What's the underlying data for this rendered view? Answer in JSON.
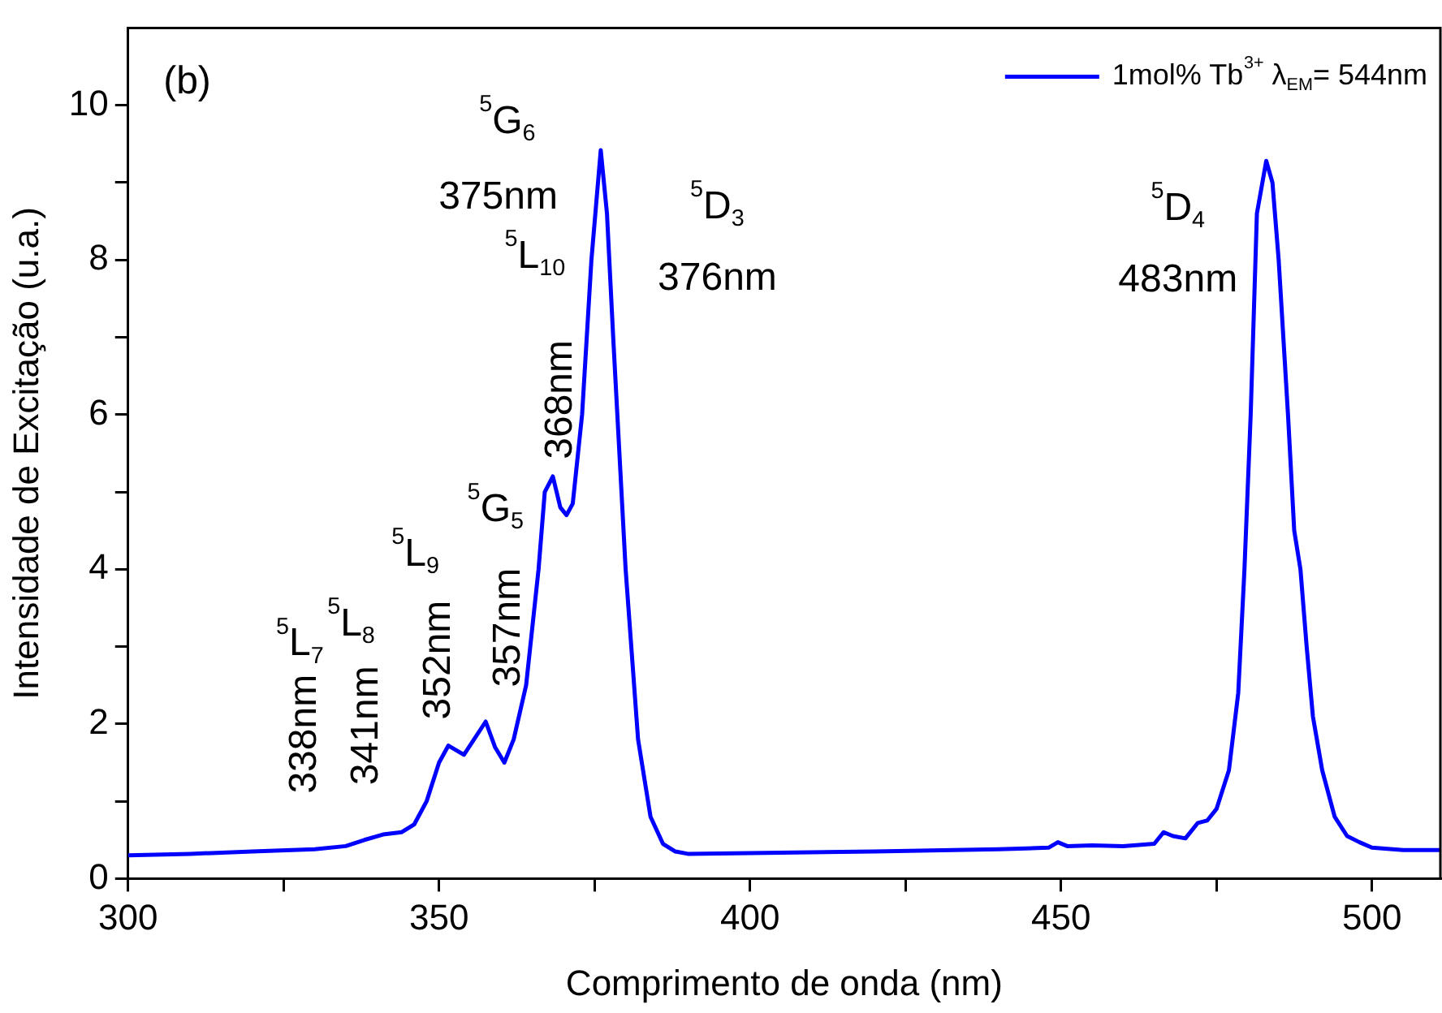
{
  "chart_data": {
    "type": "line",
    "xlabel": "Comprimento de onda (nm)",
    "ylabel": "Intensidade de Excitação (u.a.)",
    "xlim": [
      300,
      511
    ],
    "xticks": [
      300,
      {
        "value": 325,
        "label": null
      },
      350,
      {
        "value": 375,
        "label": null
      },
      400,
      {
        "value": 425,
        "label": null
      },
      450,
      {
        "value": 475,
        "label": null
      },
      500
    ],
    "ylim": [
      0,
      11
    ],
    "yticks": [
      0,
      {
        "value": 1,
        "label": null
      },
      2,
      {
        "value": 3,
        "label": null
      },
      4,
      {
        "value": 5,
        "label": null
      },
      6,
      {
        "value": 7,
        "label": null
      },
      8,
      {
        "value": 9,
        "label": null
      },
      10
    ],
    "grid": false,
    "legend": "top right",
    "marker": "none",
    "line_style": "solid",
    "series": [
      {
        "name": "1mol% Tb$^{3+}$ λ$_{EM}$= 544nm",
        "color": "#0000ff",
        "x": [
          300,
          310,
          320,
          330,
          335,
          338,
          341,
          344,
          346,
          348,
          350,
          351.5,
          354,
          357.5,
          359,
          360.5,
          362,
          364,
          366,
          367,
          368.3,
          369.5,
          370.5,
          371.5,
          373,
          374.5,
          376,
          377,
          378,
          380,
          382,
          384,
          386,
          388,
          390,
          400,
          420,
          440,
          448,
          449.5,
          451,
          455,
          460,
          465,
          466.5,
          468,
          470,
          472,
          473.5,
          475,
          477,
          478.5,
          479.5,
          480.5,
          481.5,
          483,
          484,
          485,
          486.5,
          487.5,
          488.5,
          489.5,
          490.5,
          492,
          494,
          496,
          498,
          500,
          505,
          511
        ],
        "values": [
          0.3,
          0.32,
          0.35,
          0.38,
          0.42,
          0.5,
          0.57,
          0.6,
          0.7,
          1.0,
          1.5,
          1.72,
          1.6,
          2.03,
          1.7,
          1.5,
          1.8,
          2.5,
          4.0,
          5.0,
          5.2,
          4.8,
          4.7,
          4.85,
          6.0,
          8.0,
          9.42,
          8.6,
          7.0,
          4.0,
          1.8,
          0.8,
          0.45,
          0.35,
          0.32,
          0.33,
          0.35,
          0.38,
          0.4,
          0.47,
          0.42,
          0.43,
          0.42,
          0.45,
          0.6,
          0.55,
          0.52,
          0.72,
          0.75,
          0.9,
          1.4,
          2.4,
          4.0,
          6.0,
          8.6,
          9.28,
          9.0,
          8.0,
          6.0,
          4.5,
          4.0,
          3.0,
          2.1,
          1.4,
          0.8,
          0.55,
          0.47,
          0.4,
          0.37,
          0.37
        ]
      }
    ],
    "annotations": [
      "(b)",
      "$^{5}$L$_{7}$",
      "338nm",
      "$^{5}$L$_{8}$",
      "341nm",
      "$^{5}$L$_{9}$",
      "352nm",
      "$^{5}$G$_{5}$",
      "357nm",
      "368nm",
      "$^{5}$G$_{6}$",
      "375nm",
      "$^{5}$L$_{10}$",
      "$^{5}$D$_{3}$",
      "376nm",
      "$^{5}$D$_{4}$",
      "483nm"
    ]
  }
}
